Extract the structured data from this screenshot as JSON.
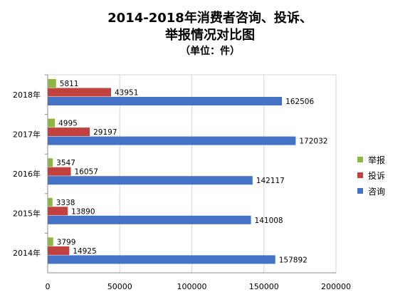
{
  "chart_data": {
    "type": "bar",
    "orientation": "horizontal",
    "title": "2014-2018年消费者咨询、投诉、举报情况对比图",
    "title_lines": [
      "2014-2018年消费者咨询、投诉、",
      "举报情况对比图"
    ],
    "subtitle": "（单位：件）",
    "categories": [
      "2014年",
      "2015年",
      "2016年",
      "2017年",
      "2018年"
    ],
    "series": [
      {
        "name": "举报",
        "color": "#8db543",
        "values": [
          3799,
          3338,
          3547,
          4995,
          5811
        ]
      },
      {
        "name": "投诉",
        "color": "#c0413e",
        "values": [
          14925,
          13890,
          16057,
          29197,
          43951
        ]
      },
      {
        "name": "咨询",
        "color": "#4473c5",
        "values": [
          157892,
          141008,
          142117,
          172032,
          162506
        ]
      }
    ],
    "xlim": [
      0,
      200000
    ],
    "xticks": [
      "0",
      "50000",
      "100000",
      "150000",
      "200000"
    ],
    "legend_position": "right",
    "grid": true
  }
}
